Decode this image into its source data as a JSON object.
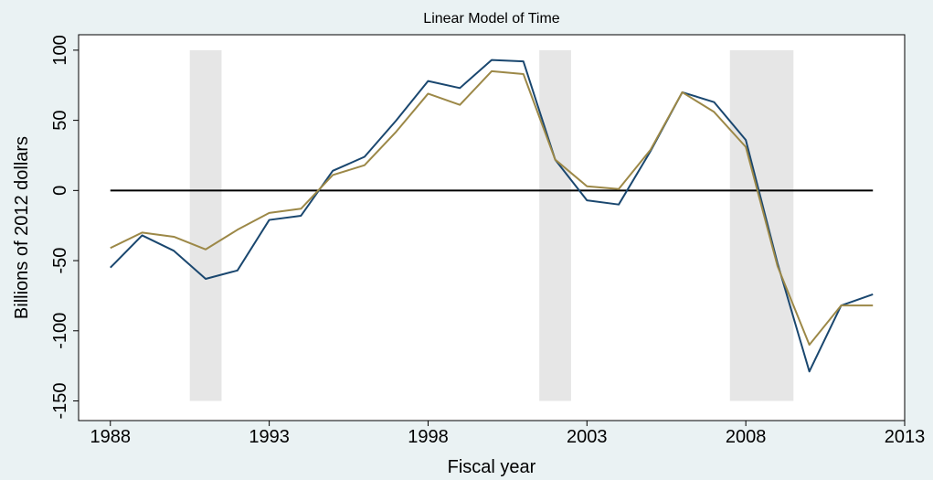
{
  "chart_data": {
    "type": "line",
    "title": "Linear Model of Time",
    "x_label": "Fiscal year",
    "y_label": "Billions of 2012 dollars",
    "x": [
      1988,
      1989,
      1990,
      1991,
      1992,
      1993,
      1994,
      1995,
      1996,
      1997,
      1998,
      1999,
      2000,
      2001,
      2002,
      2003,
      2004,
      2005,
      2006,
      2007,
      2008,
      2009,
      2010,
      2011,
      2012
    ],
    "series": [
      {
        "color": "#1a476f",
        "values": [
          -55,
          -32,
          -43,
          -63,
          -57,
          -21,
          -18,
          14,
          24,
          50,
          78,
          73,
          93,
          92,
          22,
          -7,
          -10,
          28,
          70,
          63,
          36,
          -52,
          -129,
          -82,
          -74
        ]
      },
      {
        "color": "#9c8847",
        "values": [
          -41,
          -30,
          -33,
          -42,
          -28,
          -16,
          -13,
          11,
          18,
          42,
          69,
          61,
          85,
          83,
          22,
          3,
          1,
          29,
          70,
          56,
          31,
          -54,
          -110,
          -82,
          -82
        ]
      }
    ],
    "reference_line": 0,
    "shaded_periods": [
      [
        1990.5,
        1991.5
      ],
      [
        2001.5,
        2002.5
      ],
      [
        2007.5,
        2008.5
      ],
      [
        2008.5,
        2009.5
      ]
    ],
    "shade_ylim": [
      -150,
      100
    ],
    "shade_color": "#e6e6e6",
    "xlim": [
      1987,
      2013
    ],
    "xticks": [
      1988,
      1993,
      1998,
      2003,
      2008,
      2013
    ],
    "ylim": [
      -164,
      111
    ],
    "yticks": [
      -150,
      -100,
      -50,
      0,
      50,
      100
    ]
  }
}
